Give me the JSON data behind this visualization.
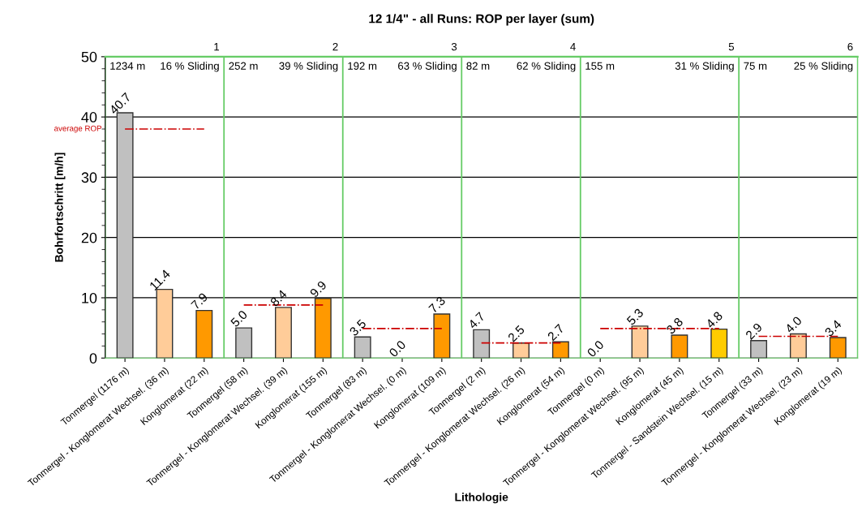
{
  "chart_data": {
    "type": "bar",
    "title": "12 1/4\" - all Runs: ROP per layer (sum)",
    "xlabel": "Lithologie",
    "ylabel": "Bohrfortschritt [m/h]",
    "categories": [
      "Tonmergel (1176 m)",
      "Tonmergel - Konglomerat Wechsel. (36 m)",
      "Konglomerat (22 m)",
      "Tonmergel (58 m)",
      "Tonmergel - Konglomerat Wechsel. (39 m)",
      "Konglomerat (155 m)",
      "Tonmergel (83 m)",
      "Tonmergel - Konglomerat Wechsel. (0 m)",
      "Konglomerat (109 m)",
      "Tonmergel (2 m)",
      "Tonmergel - Konglomerat Wechsel. (26 m)",
      "Konglomerat (54 m)",
      "Tonmergel (0 m)",
      "Tonmergel - Konglomerat Wechsel. (95 m)",
      "Konglomerat (45 m)",
      "Tonmergel - Sandstein Wechsel. (15 m)",
      "Tonmergel (33 m)",
      "Tonmergel - Konglomerat Wechsel. (23 m)",
      "Konglomerat (19 m)"
    ],
    "series": [
      {
        "values": [
          40.7,
          11.4,
          7.9,
          5.0,
          8.4,
          9.9,
          3.5,
          0.0,
          7.3,
          4.7,
          2.5,
          2.7,
          0.0,
          5.3,
          3.8,
          4.8,
          2.9,
          4.0,
          3.4
        ],
        "colors": [
          "#c0c0c0",
          "#ffcc99",
          "#ff9900",
          "#c0c0c0",
          "#ffcc99",
          "#ff9900",
          "#c0c0c0",
          "#ffcc99",
          "#ff9900",
          "#c0c0c0",
          "#ffcc99",
          "#ff9900",
          "#c0c0c0",
          "#ffcc99",
          "#ff9900",
          "#ffcc00",
          "#c0c0c0",
          "#ffcc99",
          "#ff9900"
        ],
        "value_labels": [
          "40.7",
          "11.4",
          "7.9",
          "5.0",
          "8.4",
          "9.9",
          "3.5",
          "0.0",
          "7.3",
          "4.7",
          "2.5",
          "2.7",
          "0.0",
          "5.3",
          "3.8",
          "4.8",
          "2.9",
          "4.0",
          "3.4"
        ]
      },
      {
        "type": "line",
        "name": "average ROP",
        "color": "#cc0000",
        "line_style": "dashdot",
        "marker": "none",
        "values": [
          38,
          38,
          38,
          8.8,
          8.8,
          8.8,
          4.9,
          4.9,
          4.9,
          2.5,
          2.5,
          2.5,
          4.9,
          4.9,
          4.9,
          4.9,
          3.6,
          3.6,
          3.6
        ]
      }
    ],
    "ylim": [
      0,
      50
    ],
    "yticks": [
      0,
      10,
      20,
      30,
      40,
      50
    ],
    "grid": "y",
    "legend": false,
    "annotations": [
      "1",
      "1234 m",
      "16 % Sliding",
      "2",
      "252 m",
      "39 % Sliding",
      "3",
      "192 m",
      "63 % Sliding",
      "4",
      "82 m",
      "62 % Sliding",
      "5",
      "155 m",
      "31 % Sliding",
      "6",
      "75 m",
      "25 % Sliding"
    ]
  }
}
